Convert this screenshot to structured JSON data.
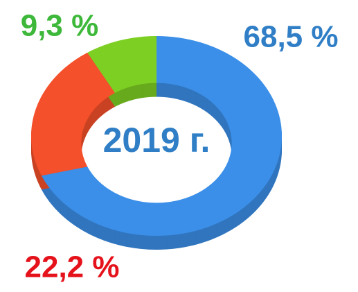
{
  "chart_data": {
    "type": "pie",
    "donut": true,
    "center_label": "2019 г.",
    "values": [
      68.5,
      22.2,
      9.3
    ],
    "value_labels": [
      "68,5 %",
      "22,2 %",
      "9,3 %"
    ],
    "colors": [
      "#3b8fe8",
      "#f4502b",
      "#7dcf23"
    ],
    "label_colors": [
      "#2f7ec6",
      "#e5121b",
      "#3db83a"
    ],
    "center_color": "#2f7ec6"
  }
}
